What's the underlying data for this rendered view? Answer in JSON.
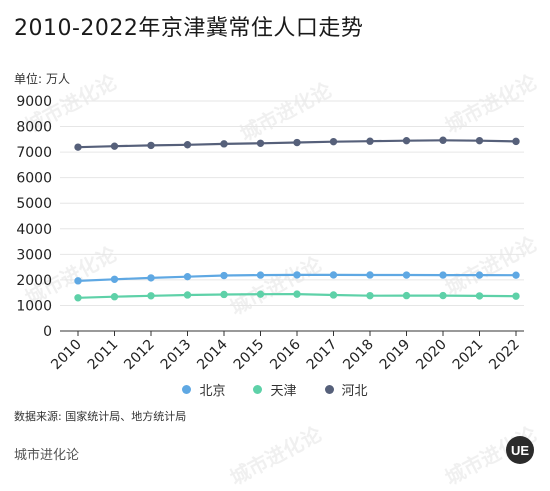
{
  "title": "2010-2022年京津冀常住人口走势",
  "unit_label": "单位:",
  "unit_value": "万人",
  "source_text": "数据来源: 国家统计局、地方统计局",
  "brand_text": "城市进化论",
  "logo_text": "UE",
  "colors": {
    "beijing": "#5fa8e3",
    "tianjin": "#5ed1a8",
    "hebei": "#56607a",
    "grid": "#e6e6e6",
    "axis": "#333333"
  },
  "legend": [
    {
      "name": "北京",
      "color": "#5fa8e3"
    },
    {
      "name": "天津",
      "color": "#5ed1a8"
    },
    {
      "name": "河北",
      "color": "#56607a"
    }
  ],
  "chart_data": {
    "type": "line",
    "title": "2010-2022年京津冀常住人口走势",
    "xlabel": "",
    "ylabel": "万人",
    "x": [
      "2010",
      "2011",
      "2012",
      "2013",
      "2014",
      "2015",
      "2016",
      "2017",
      "2018",
      "2019",
      "2020",
      "2021",
      "2022"
    ],
    "ylim": [
      0,
      9000
    ],
    "yticks": [
      0,
      1000,
      2000,
      3000,
      4000,
      5000,
      6000,
      7000,
      8000,
      9000
    ],
    "grid": true,
    "legend_position": "bottom",
    "series": [
      {
        "name": "北京",
        "values": [
          1962,
          2024,
          2078,
          2125,
          2171,
          2188,
          2195,
          2194,
          2192,
          2190,
          2189,
          2189,
          2184
        ]
      },
      {
        "name": "天津",
        "values": [
          1299,
          1341,
          1378,
          1410,
          1429,
          1439,
          1443,
          1410,
          1383,
          1385,
          1387,
          1373,
          1363
        ]
      },
      {
        "name": "河北",
        "values": [
          7194,
          7232,
          7262,
          7288,
          7323,
          7345,
          7375,
          7409,
          7426,
          7447,
          7464,
          7448,
          7420
        ]
      }
    ]
  }
}
